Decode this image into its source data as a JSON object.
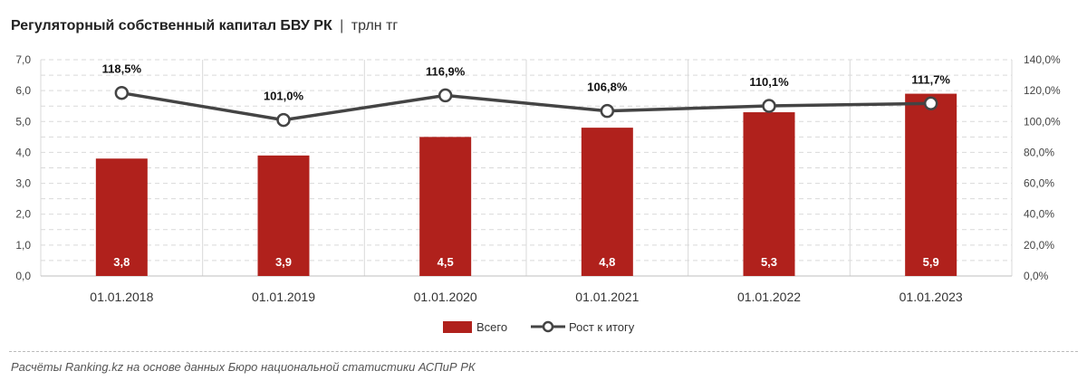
{
  "title": {
    "main": "Регуляторный собственный капитал БВУ РК",
    "separator": "|",
    "unit": "трлн тг"
  },
  "source": "Расчёты Ranking.kz на основе данных Бюро национальной статистики АСПиР РК",
  "colors": {
    "bar": "#b0211c",
    "line": "#444444",
    "grid": "#d9d9d9"
  },
  "chart_data": {
    "type": "bar",
    "categories": [
      "01.01.2018",
      "01.01.2019",
      "01.01.2020",
      "01.01.2021",
      "01.01.2022",
      "01.01.2023"
    ],
    "series": [
      {
        "name": "Всего",
        "type": "bar",
        "axis": "left",
        "values": [
          3.8,
          3.9,
          4.5,
          4.8,
          5.3,
          5.9
        ],
        "labels": [
          "3,8",
          "3,9",
          "4,5",
          "4,8",
          "5,3",
          "5,9"
        ]
      },
      {
        "name": "Рост к итогу",
        "type": "line",
        "axis": "right",
        "values": [
          118.5,
          101.0,
          116.9,
          106.8,
          110.1,
          111.7
        ],
        "labels": [
          "118,5%",
          "101,0%",
          "116,9%",
          "106,8%",
          "110,1%",
          "111,7%"
        ]
      }
    ],
    "y_left": {
      "min": 0,
      "max": 7,
      "ticks": [
        "0,0",
        "1,0",
        "2,0",
        "3,0",
        "4,0",
        "5,0",
        "6,0",
        "7,0"
      ]
    },
    "y_right": {
      "min": 0,
      "max": 140,
      "ticks": [
        "0,0%",
        "20,0%",
        "40,0%",
        "60,0%",
        "80,0%",
        "100,0%",
        "120,0%",
        "140,0%"
      ]
    },
    "grid": true,
    "legend": "bottom-center"
  }
}
